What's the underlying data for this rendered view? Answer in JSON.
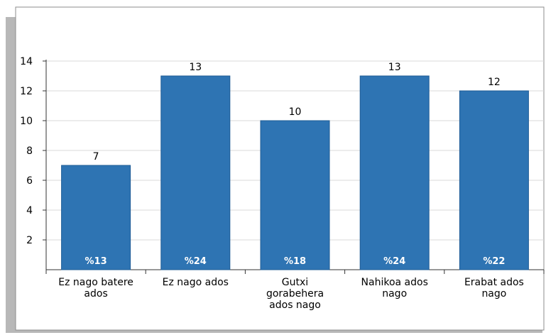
{
  "chart_data": {
    "type": "bar",
    "title": "",
    "xlabel": "",
    "ylabel": "",
    "ylim": [
      0,
      14
    ],
    "yticks": [
      2,
      4,
      6,
      8,
      10,
      12,
      14
    ],
    "grid": true,
    "categories": [
      [
        "Ez nago batere",
        "ados"
      ],
      [
        "Ez nago ados"
      ],
      [
        "Gutxi",
        "gorabehera",
        "ados nago"
      ],
      [
        "Nahikoa ados",
        "nago"
      ],
      [
        "Erabat ados",
        "nago"
      ]
    ],
    "values": [
      7,
      13,
      10,
      13,
      12
    ],
    "percent_labels": [
      "%13",
      "%24",
      "%18",
      "%24",
      "%22"
    ],
    "colors": {
      "bar": "#2e74b3",
      "bar_stroke": "#1f5c96",
      "grid": "#d9d9d9",
      "axis": "#333333",
      "shadow": "#b8b8b8",
      "panel_border": "#8c8c8c"
    }
  }
}
